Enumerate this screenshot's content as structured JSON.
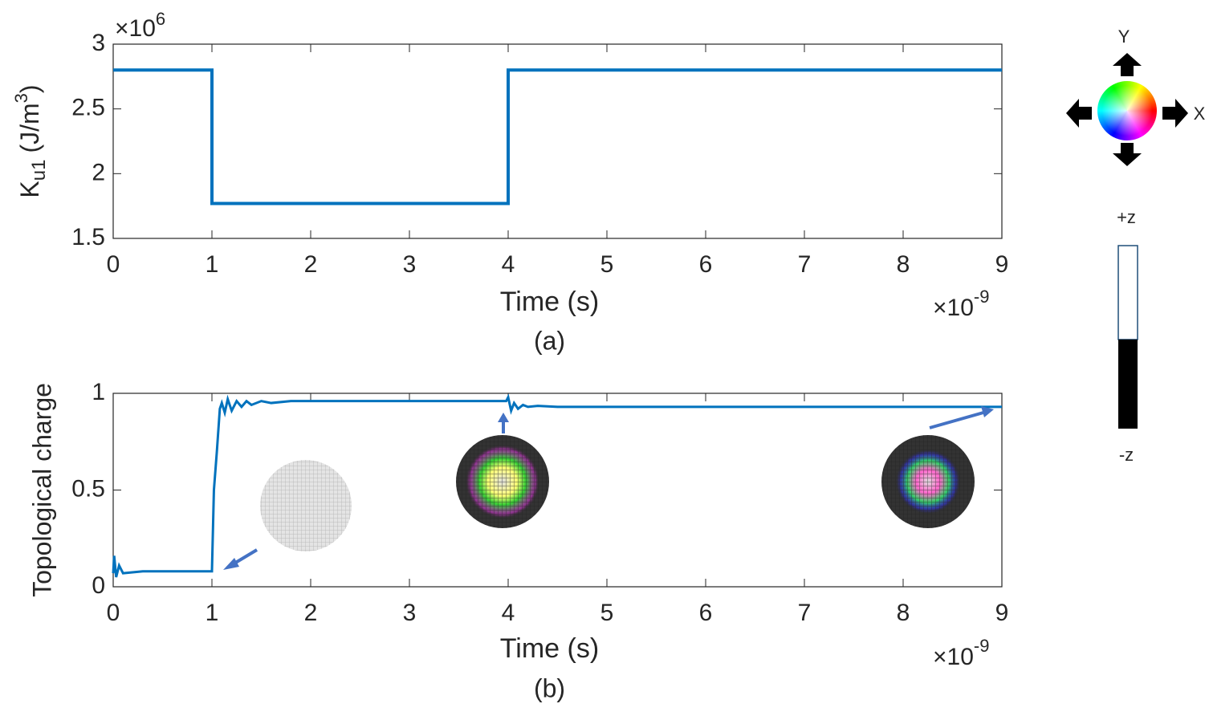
{
  "chart_data": [
    {
      "type": "line",
      "caption": "(a)",
      "xlabel": "Time (s)",
      "x_multiplier": {
        "base": "×10",
        "exponent": "-9"
      },
      "ylabel": {
        "symbol": "K",
        "subscript": "u1",
        "unit": "(J/m",
        "superscript": "3",
        "close": ")"
      },
      "y_multiplier": {
        "base": "×10",
        "exponent": "6"
      },
      "x": [
        0,
        1,
        1,
        4,
        4,
        9
      ],
      "series": [
        {
          "color": "#0072bd",
          "values": [
            2.8,
            2.8,
            1.77,
            1.77,
            2.8,
            2.8
          ]
        }
      ],
      "xlim": [
        0,
        9
      ],
      "xticks": [
        0,
        1,
        2,
        3,
        4,
        5,
        6,
        7,
        8,
        9
      ],
      "ylim": [
        1.5,
        3
      ],
      "yticks": [
        1.5,
        2,
        2.5,
        3
      ],
      "grid": false
    },
    {
      "type": "line",
      "caption": "(b)",
      "xlabel": "Time (s)",
      "x_multiplier": {
        "base": "×10",
        "exponent": "-9"
      },
      "ylabel": "Topological charge",
      "x": [
        0,
        0.01,
        0.03,
        0.06,
        0.1,
        0.3,
        1.0,
        1.02,
        1.05,
        1.08,
        1.1,
        1.13,
        1.16,
        1.2,
        1.25,
        1.3,
        1.35,
        1.4,
        1.5,
        1.6,
        1.8,
        2.0,
        3.0,
        3.95,
        3.98,
        4.0,
        4.03,
        4.06,
        4.1,
        4.15,
        4.2,
        4.3,
        4.5,
        5.0,
        9.0
      ],
      "series": [
        {
          "color": "#0072bd",
          "values": [
            0.07,
            0.16,
            0.05,
            0.11,
            0.07,
            0.08,
            0.08,
            0.5,
            0.7,
            0.92,
            0.95,
            0.9,
            0.97,
            0.91,
            0.96,
            0.93,
            0.96,
            0.94,
            0.96,
            0.95,
            0.96,
            0.96,
            0.96,
            0.96,
            0.96,
            0.98,
            0.91,
            0.95,
            0.92,
            0.94,
            0.93,
            0.935,
            0.93,
            0.93,
            0.93
          ]
        }
      ],
      "xlim": [
        0,
        9
      ],
      "xticks": [
        0,
        1,
        2,
        3,
        4,
        5,
        6,
        7,
        8,
        9
      ],
      "ylim": [
        0,
        1
      ],
      "yticks": [
        0,
        0.5,
        1
      ],
      "grid": false
    }
  ],
  "legend_panel": {
    "y_axis": "Y",
    "x_axis": "X",
    "plus_z": "+z",
    "minus_z": "-z"
  }
}
